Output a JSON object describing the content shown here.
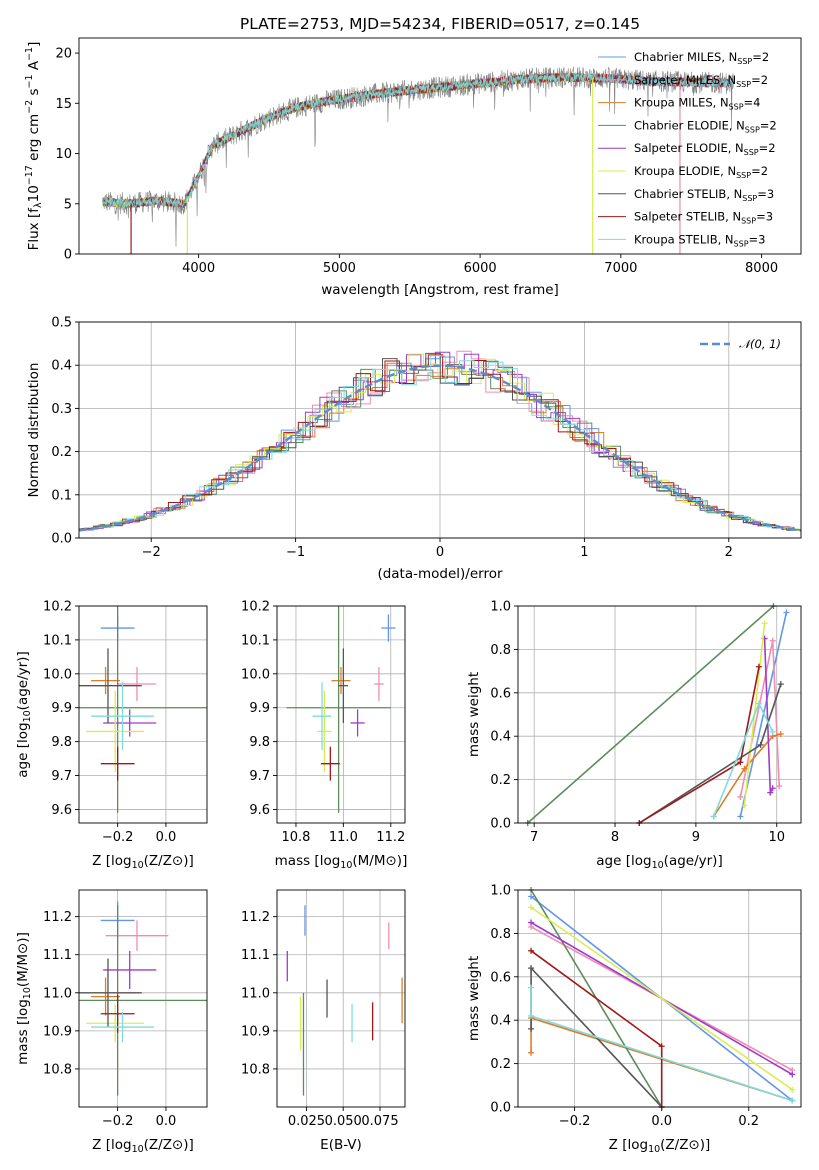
{
  "figure": {
    "title": "PLATE=2753, MJD=54234, FIBERID=0517, z=0.145"
  },
  "series_meta": [
    {
      "name": "Chabrier MILES",
      "nssp": "2",
      "color": "#6495ED"
    },
    {
      "name": "Salpeter MILES",
      "nssp": "2",
      "color": "#F08CB4"
    },
    {
      "name": "Kroupa MILES",
      "nssp": "4",
      "color": "#E07B28"
    },
    {
      "name": "Chabrier ELODIE",
      "nssp": "2",
      "color": "#5C8C5C"
    },
    {
      "name": "Salpeter ELODIE",
      "nssp": "2",
      "color": "#A03CC8"
    },
    {
      "name": "Kroupa ELODIE",
      "nssp": "2",
      "color": "#D8EE50"
    },
    {
      "name": "Chabrier STELIB",
      "nssp": "3",
      "color": "#555555"
    },
    {
      "name": "Salpeter STELIB",
      "nssp": "3",
      "color": "#A01818"
    },
    {
      "name": "Kroupa STELIB",
      "nssp": "3",
      "color": "#7EDCDC"
    }
  ],
  "chart_data": [
    {
      "id": "spectrum",
      "type": "line",
      "xlabel": "wavelength [Angstrom, rest frame]",
      "ylabel": "Flux [f",
      "xlim": [
        3150,
        8280
      ],
      "ylim": [
        0,
        21.5
      ],
      "xticks": [
        4000,
        5000,
        6000,
        7000,
        8000
      ],
      "yticks": [
        0,
        5,
        10,
        15,
        20
      ],
      "grid": false,
      "legend": "top-right",
      "observed_color": "#7F7F7F",
      "continuum": {
        "x": [
          3320,
          3500,
          3700,
          3900,
          4000,
          4100,
          4300,
          4500,
          4700,
          4900,
          5100,
          5300,
          5500,
          5800,
          6000,
          6300,
          6600,
          6900,
          7200,
          7500,
          7800
        ],
        "y": [
          5.2,
          5.0,
          5.3,
          5.0,
          7.8,
          10.8,
          12.2,
          13.6,
          14.6,
          15.2,
          15.6,
          16.0,
          16.3,
          16.7,
          17.0,
          17.4,
          17.6,
          17.5,
          17.2,
          17.1,
          17.0
        ]
      }
    },
    {
      "id": "residuals",
      "type": "line",
      "xlabel": "(data-model)/error",
      "ylabel": "Normed distribution",
      "xlim": [
        -2.5,
        2.5
      ],
      "ylim": [
        0,
        0.5
      ],
      "xticks": [
        -2,
        -1,
        0,
        1,
        2
      ],
      "xticklabels": [
        "−2",
        "−1",
        "0",
        "1",
        "2"
      ],
      "yticks": [
        0,
        0.1,
        0.2,
        0.3,
        0.4,
        0.5
      ],
      "yticklabels": [
        "0.0",
        "0.1",
        "0.2",
        "0.3",
        "0.4",
        "0.5"
      ],
      "grid": true,
      "legend": "top-right",
      "reference_label": "𝒩(0, 1)",
      "reference_color": "#5B8CD0"
    },
    {
      "id": "age_vs_Z",
      "type": "scatter",
      "xlabel": "Z [log",
      "ylabel": "age  [log",
      "xlim": [
        -0.36,
        0.17
      ],
      "ylim": [
        9.56,
        10.2
      ],
      "xticks": [
        -0.2,
        0.0
      ],
      "xticklabels": [
        "−0.2",
        "0.0"
      ],
      "yticks": [
        9.6,
        9.7,
        9.8,
        9.9,
        10.0,
        10.1,
        10.2
      ],
      "yticklabels": [
        "9.6",
        "9.7",
        "9.8",
        "9.9",
        "10.0",
        "10.1",
        "10.2"
      ],
      "grid": true,
      "points": [
        {
          "x": -0.2,
          "y": 10.135,
          "xerr": 0.07,
          "yerr": 0.04
        },
        {
          "x": -0.12,
          "y": 9.97,
          "xerr": 0.08,
          "yerr": 0.05
        },
        {
          "x": -0.25,
          "y": 9.98,
          "xerr": 0.06,
          "yerr": 0.04
        },
        {
          "x": -0.2,
          "y": 9.9,
          "xerr": 0.5,
          "yerr": 0.31
        },
        {
          "x": -0.15,
          "y": 9.855,
          "xerr": 0.11,
          "yerr": 0.04
        },
        {
          "x": -0.21,
          "y": 9.83,
          "xerr": 0.12,
          "yerr": 0.12
        },
        {
          "x": -0.24,
          "y": 9.965,
          "xerr": 0.14,
          "yerr": 0.11
        },
        {
          "x": -0.2,
          "y": 9.735,
          "xerr": 0.07,
          "yerr": 0.05
        },
        {
          "x": -0.18,
          "y": 9.875,
          "xerr": 0.13,
          "yerr": 0.1
        }
      ]
    },
    {
      "id": "age_vs_mass",
      "type": "scatter",
      "xlabel": "mass [log",
      "ylabel": "",
      "xlim": [
        10.72,
        11.26
      ],
      "ylim": [
        9.56,
        10.2
      ],
      "xticks": [
        10.8,
        11.0,
        11.2
      ],
      "xticklabels": [
        "10.8",
        "11.0",
        "11.2"
      ],
      "yticks": [
        9.6,
        9.7,
        9.8,
        9.9,
        10.0,
        10.1,
        10.2
      ],
      "yticklabels": [
        "9.6",
        "9.7",
        "9.8",
        "9.9",
        "10.0",
        "10.1",
        "10.2"
      ],
      "grid": true,
      "points": [
        {
          "x": 11.19,
          "y": 10.135,
          "xerr": 0.03,
          "yerr": 0.04
        },
        {
          "x": 11.15,
          "y": 9.97,
          "xerr": 0.02,
          "yerr": 0.05
        },
        {
          "x": 10.99,
          "y": 9.98,
          "xerr": 0.04,
          "yerr": 0.04
        },
        {
          "x": 10.98,
          "y": 9.9,
          "xerr": 0.22,
          "yerr": 0.31
        },
        {
          "x": 11.06,
          "y": 9.855,
          "xerr": 0.03,
          "yerr": 0.04
        },
        {
          "x": 10.92,
          "y": 9.83,
          "xerr": 0.03,
          "yerr": 0.12
        },
        {
          "x": 11.0,
          "y": 9.965,
          "xerr": 0.02,
          "yerr": 0.11
        },
        {
          "x": 10.945,
          "y": 9.735,
          "xerr": 0.04,
          "yerr": 0.05
        },
        {
          "x": 10.91,
          "y": 9.875,
          "xerr": 0.04,
          "yerr": 0.1
        }
      ]
    },
    {
      "id": "weight_vs_age",
      "type": "line",
      "xlabel": "age  [log",
      "ylabel": "mass weight",
      "xlim": [
        6.8,
        10.3
      ],
      "ylim": [
        0,
        1
      ],
      "xticks": [
        7,
        8,
        9,
        10
      ],
      "yticks": [
        0,
        0.2,
        0.4,
        0.6,
        0.8,
        1.0
      ],
      "yticklabels": [
        "0.0",
        "0.2",
        "0.4",
        "0.6",
        "0.8",
        "1.0"
      ],
      "grid": true,
      "series": [
        {
          "x": [
            9.55,
            10.12
          ],
          "y": [
            0.03,
            0.97
          ]
        },
        {
          "x": [
            9.55,
            9.95,
            10.03
          ],
          "y": [
            0.12,
            0.84,
            0.17
          ]
        },
        {
          "x": [
            9.22,
            9.6,
            9.95,
            10.05
          ],
          "y": [
            0.03,
            0.25,
            0.4,
            0.41
          ]
        },
        {
          "x": [
            6.92,
            9.96
          ],
          "y": [
            0.0,
            1.0
          ]
        },
        {
          "x": [
            9.85,
            9.92,
            9.95
          ],
          "y": [
            0.85,
            0.14,
            0.16
          ]
        },
        {
          "x": [
            9.6,
            9.85
          ],
          "y": [
            0.08,
            0.92
          ]
        },
        {
          "x": [
            8.3,
            9.8,
            10.05
          ],
          "y": [
            0.0,
            0.36,
            0.64
          ]
        },
        {
          "x": [
            8.3,
            9.55,
            9.78
          ],
          "y": [
            0.0,
            0.28,
            0.72
          ]
        },
        {
          "x": [
            9.22,
            9.78,
            9.95
          ],
          "y": [
            0.03,
            0.55,
            0.42
          ]
        }
      ]
    },
    {
      "id": "mass_vs_Z",
      "type": "scatter",
      "xlabel": "Z [log",
      "ylabel": "mass [log",
      "xlim": [
        -0.36,
        0.17
      ],
      "ylim": [
        10.7,
        11.27
      ],
      "xticks": [
        -0.2,
        0.0
      ],
      "xticklabels": [
        "−0.2",
        "0.0"
      ],
      "yticks": [
        10.8,
        10.9,
        11.0,
        11.1,
        11.2
      ],
      "yticklabels": [
        "10.8",
        "10.9",
        "11.0",
        "11.1",
        "11.2"
      ],
      "grid": true,
      "points": [
        {
          "x": -0.2,
          "y": 11.19,
          "xerr": 0.07,
          "yerr": 0.05
        },
        {
          "x": -0.12,
          "y": 11.15,
          "xerr": 0.13,
          "yerr": 0.04
        },
        {
          "x": -0.25,
          "y": 10.99,
          "xerr": 0.06,
          "yerr": 0.05
        },
        {
          "x": -0.2,
          "y": 10.98,
          "xerr": 0.5,
          "yerr": 0.25
        },
        {
          "x": -0.15,
          "y": 11.06,
          "xerr": 0.11,
          "yerr": 0.05
        },
        {
          "x": -0.21,
          "y": 10.92,
          "xerr": 0.12,
          "yerr": 0.05
        },
        {
          "x": -0.24,
          "y": 11.0,
          "xerr": 0.14,
          "yerr": 0.09
        },
        {
          "x": -0.2,
          "y": 10.945,
          "xerr": 0.07,
          "yerr": 0.05
        },
        {
          "x": -0.18,
          "y": 10.91,
          "xerr": 0.13,
          "yerr": 0.04
        }
      ]
    },
    {
      "id": "mass_vs_ebv",
      "type": "scatter",
      "xlabel": "E(B-V)",
      "ylabel": "",
      "xlim": [
        0.005,
        0.092
      ],
      "ylim": [
        10.7,
        11.27
      ],
      "xticks": [
        0.025,
        0.05,
        0.075
      ],
      "xticklabels": [
        "0.025",
        "0.050",
        "0.075"
      ],
      "yticks": [
        10.8,
        10.9,
        11.0,
        11.1,
        11.2
      ],
      "yticklabels": [
        "10.8",
        "10.9",
        "11.0",
        "11.1",
        "11.2"
      ],
      "grid": true,
      "points": [
        {
          "x": 0.024,
          "y": 11.19,
          "xerr": 0,
          "yerr": 0.04
        },
        {
          "x": 0.081,
          "y": 11.15,
          "xerr": 0,
          "yerr": 0.035
        },
        {
          "x": 0.09,
          "y": 10.98,
          "xerr": 0,
          "yerr": 0.06
        },
        {
          "x": 0.023,
          "y": 10.865,
          "xerr": 0,
          "yerr": 0.135
        },
        {
          "x": 0.012,
          "y": 11.07,
          "xerr": 0,
          "yerr": 0.04
        },
        {
          "x": 0.021,
          "y": 10.92,
          "xerr": 0,
          "yerr": 0.07
        },
        {
          "x": 0.039,
          "y": 10.985,
          "xerr": 0,
          "yerr": 0.05
        },
        {
          "x": 0.07,
          "y": 10.925,
          "xerr": 0,
          "yerr": 0.05
        },
        {
          "x": 0.056,
          "y": 10.92,
          "xerr": 0,
          "yerr": 0.05
        }
      ]
    },
    {
      "id": "weight_vs_Z",
      "type": "line",
      "xlabel": "Z [log",
      "ylabel": "mass weight",
      "xlim": [
        -0.33,
        0.32
      ],
      "ylim": [
        0,
        1
      ],
      "xticks": [
        -0.2,
        0.0,
        0.2
      ],
      "xticklabels": [
        "−0.2",
        "0.0",
        "0.2"
      ],
      "yticks": [
        0,
        0.2,
        0.4,
        0.6,
        0.8,
        1.0
      ],
      "yticklabels": [
        "0.0",
        "0.2",
        "0.4",
        "0.6",
        "0.8",
        "1.0"
      ],
      "grid": true,
      "series": [
        {
          "x": [
            -0.3,
            0.3
          ],
          "y": [
            0.97,
            0.03
          ]
        },
        {
          "x": [
            -0.3,
            0.3
          ],
          "y": [
            0.83,
            0.17
          ]
        },
        {
          "x": [
            -0.3,
            -0.3,
            0.3
          ],
          "y": [
            0.25,
            0.41,
            0.03
          ]
        },
        {
          "x": [
            -0.3,
            0.0
          ],
          "y": [
            1.0,
            0.0
          ]
        },
        {
          "x": [
            -0.3,
            0.3
          ],
          "y": [
            0.85,
            0.15
          ]
        },
        {
          "x": [
            -0.3,
            0.3
          ],
          "y": [
            0.92,
            0.08
          ]
        },
        {
          "x": [
            -0.3,
            -0.3,
            0.0
          ],
          "y": [
            0.36,
            0.64,
            0.0
          ]
        },
        {
          "x": [
            -0.3,
            0.0,
            0.0
          ],
          "y": [
            0.72,
            0.28,
            0.0
          ]
        },
        {
          "x": [
            -0.3,
            -0.3,
            0.3
          ],
          "y": [
            0.55,
            0.42,
            0.03
          ]
        }
      ]
    }
  ]
}
